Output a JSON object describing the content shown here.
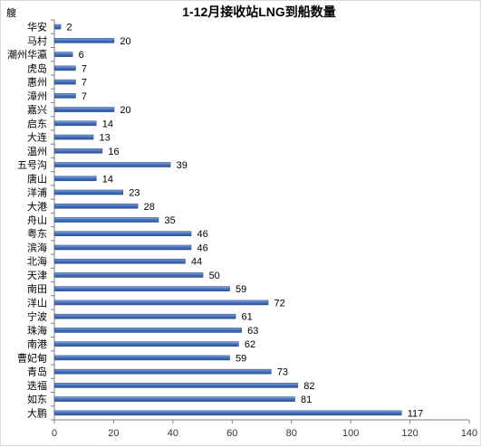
{
  "chart_data": {
    "type": "bar",
    "orientation": "horizontal",
    "title": "1-12月接收站LNG到船数量",
    "unit_label": "艘",
    "categories": [
      "华安",
      "马村",
      "潮州华瀛",
      "虎岛",
      "惠州",
      "漳州",
      "嘉兴",
      "启东",
      "大连",
      "温州",
      "五号沟",
      "唐山",
      "洋浦",
      "大港",
      "舟山",
      "粤东",
      "滨海",
      "北海",
      "天津",
      "南田",
      "洋山",
      "宁波",
      "珠海",
      "南港",
      "曹妃甸",
      "青岛",
      "迭福",
      "如东",
      "大鹏"
    ],
    "values": [
      2,
      20,
      6,
      7,
      7,
      7,
      20,
      14,
      13,
      16,
      39,
      14,
      23,
      28,
      35,
      46,
      46,
      44,
      50,
      59,
      72,
      61,
      63,
      62,
      59,
      73,
      82,
      81,
      117
    ],
    "xlim": [
      0,
      140
    ],
    "x_ticks": [
      "0",
      "20",
      "40",
      "60",
      "80",
      "100",
      "120",
      "140"
    ],
    "series_color": "#4472c4",
    "grid": false,
    "legend": "none"
  }
}
